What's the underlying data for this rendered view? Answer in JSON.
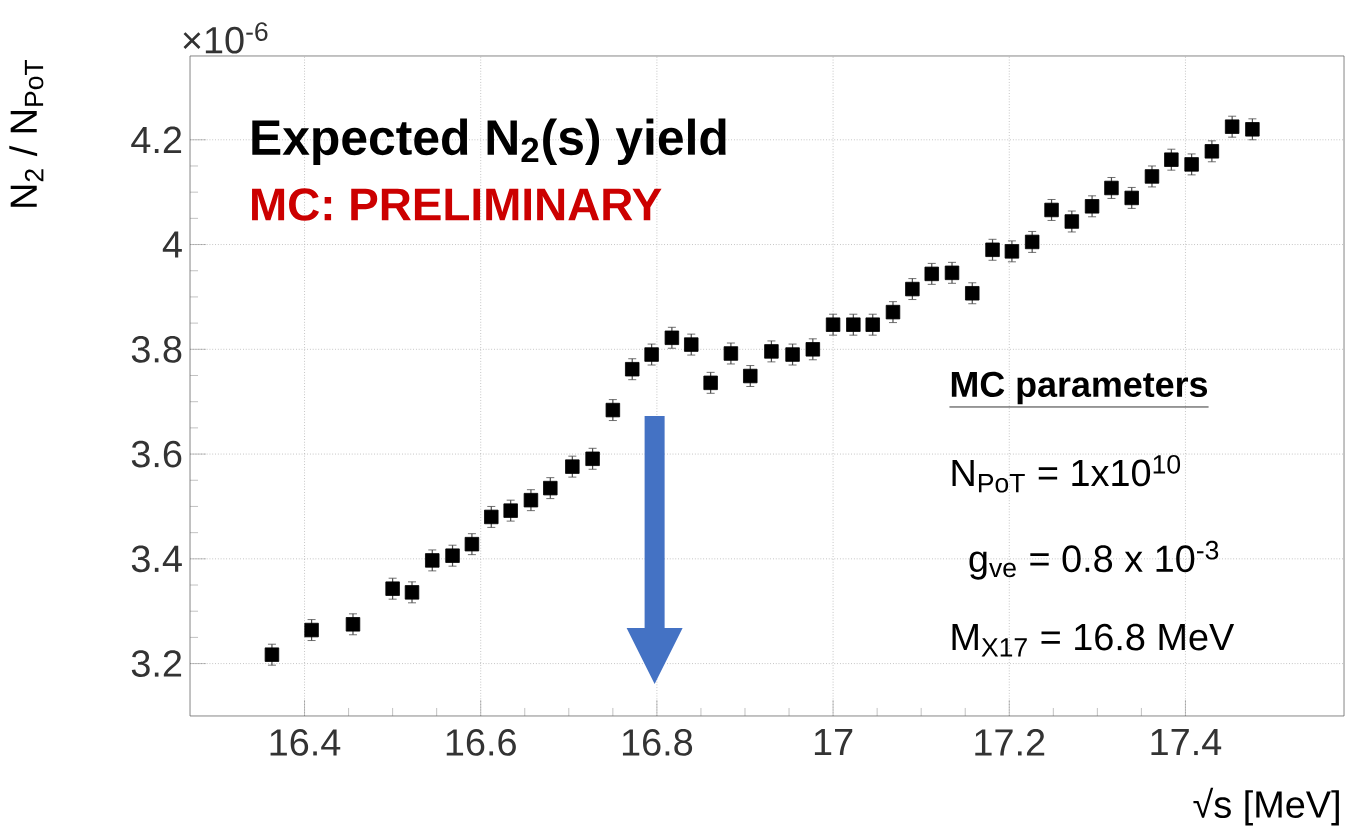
{
  "chart_data": {
    "type": "scatter",
    "title": "Expected N$_{2}$(s) yield",
    "subtitle": "MC: PRELIMINARY",
    "xlabel": "√s [MeV]",
    "ylabel": "N$_{2}$ / N$_{PoT}$",
    "annotations": [
      "×10$^{-6}$",
      "MC parameters",
      "N$_{PoT}$ = 1x10$^{10}$",
      "g$_{ve}$ = 0.8 x 10$^{-3}$",
      "M$_{X17}$ = 16.8 MeV"
    ],
    "x": [
      16.363,
      16.408,
      16.455,
      16.5,
      16.522,
      16.545,
      16.568,
      16.59,
      16.612,
      16.634,
      16.657,
      16.679,
      16.704,
      16.727,
      16.75,
      16.772,
      16.794,
      16.817,
      16.839,
      16.861,
      16.884,
      16.906,
      16.93,
      16.954,
      16.977,
      17.0,
      17.023,
      17.045,
      17.068,
      17.09,
      17.112,
      17.135,
      17.158,
      17.181,
      17.203,
      17.226,
      17.248,
      17.271,
      17.294,
      17.316,
      17.339,
      17.362,
      17.384,
      17.407,
      17.43,
      17.453,
      17.476
    ],
    "values": [
      3.217,
      3.264,
      3.275,
      3.343,
      3.336,
      3.397,
      3.406,
      3.428,
      3.48,
      3.492,
      3.512,
      3.535,
      3.576,
      3.591,
      3.684,
      3.762,
      3.79,
      3.822,
      3.809,
      3.736,
      3.792,
      3.749,
      3.796,
      3.79,
      3.8,
      3.847,
      3.847,
      3.847,
      3.871,
      3.915,
      3.944,
      3.946,
      3.907,
      3.99,
      3.987,
      4.005,
      4.066,
      4.044,
      4.073,
      4.108,
      4.089,
      4.13,
      4.162,
      4.153,
      4.178,
      4.225,
      4.22
    ],
    "errors": [
      0.02,
      0.02,
      0.02,
      0.02,
      0.02,
      0.02,
      0.02,
      0.02,
      0.02,
      0.02,
      0.02,
      0.02,
      0.02,
      0.02,
      0.02,
      0.02,
      0.02,
      0.02,
      0.02,
      0.02,
      0.02,
      0.02,
      0.02,
      0.02,
      0.02,
      0.02,
      0.02,
      0.02,
      0.02,
      0.02,
      0.02,
      0.02,
      0.02,
      0.02,
      0.02,
      0.02,
      0.02,
      0.02,
      0.02,
      0.02,
      0.02,
      0.02,
      0.02,
      0.02,
      0.02,
      0.02,
      0.02
    ],
    "color": "#000000",
    "marker": "square",
    "grid": true,
    "xlim": [
      16.27,
      17.58
    ],
    "ylim": [
      3.1,
      4.36
    ],
    "xticks": [
      16.4,
      16.6,
      16.8,
      17,
      17.2,
      17.4
    ],
    "yticks": [
      3.2,
      3.4,
      3.6,
      3.8,
      4,
      4.2
    ]
  }
}
